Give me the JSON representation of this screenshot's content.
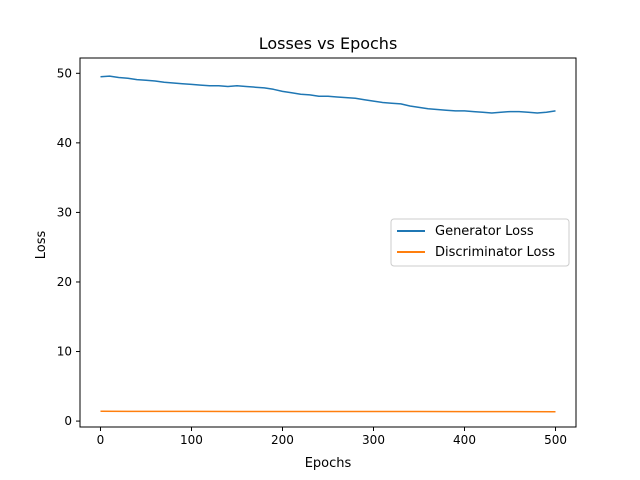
{
  "chart_data": {
    "type": "line",
    "title": "Losses vs Epochs",
    "xlabel": "Epochs",
    "ylabel": "Loss",
    "xlim": [
      -22.5,
      522.5
    ],
    "ylim": [
      -0.85,
      52.2
    ],
    "xticks": [
      0,
      100,
      200,
      300,
      400,
      500
    ],
    "yticks": [
      0,
      10,
      20,
      30,
      40,
      50
    ],
    "grid": false,
    "legend_position": "center-right",
    "series": [
      {
        "name": "Generator Loss",
        "color": "#1f77b4",
        "x": [
          0,
          10,
          20,
          30,
          40,
          50,
          60,
          70,
          80,
          90,
          100,
          110,
          120,
          130,
          140,
          150,
          160,
          170,
          180,
          190,
          200,
          210,
          220,
          230,
          240,
          250,
          260,
          270,
          280,
          290,
          300,
          310,
          320,
          330,
          340,
          350,
          360,
          370,
          380,
          390,
          400,
          410,
          420,
          430,
          440,
          450,
          460,
          470,
          480,
          490,
          500
        ],
        "values": [
          49.5,
          49.6,
          49.4,
          49.3,
          49.1,
          49.0,
          48.9,
          48.7,
          48.6,
          48.5,
          48.4,
          48.3,
          48.2,
          48.2,
          48.1,
          48.2,
          48.1,
          48.0,
          47.9,
          47.7,
          47.4,
          47.2,
          47.0,
          46.9,
          46.7,
          46.7,
          46.6,
          46.5,
          46.4,
          46.2,
          46.0,
          45.8,
          45.7,
          45.6,
          45.3,
          45.1,
          44.9,
          44.8,
          44.7,
          44.6,
          44.6,
          44.5,
          44.4,
          44.3,
          44.4,
          44.5,
          44.5,
          44.4,
          44.3,
          44.4,
          44.6
        ]
      },
      {
        "name": "Discriminator Loss",
        "color": "#ff7f0e",
        "x": [
          0,
          50,
          100,
          150,
          200,
          250,
          300,
          350,
          400,
          450,
          500
        ],
        "values": [
          1.4,
          1.39,
          1.39,
          1.38,
          1.38,
          1.38,
          1.38,
          1.38,
          1.37,
          1.36,
          1.35
        ]
      }
    ]
  }
}
